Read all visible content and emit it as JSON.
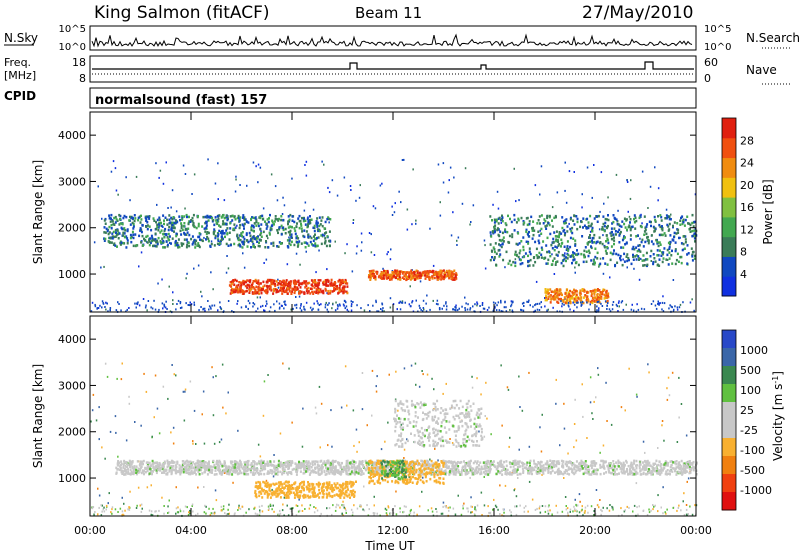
{
  "header": {
    "station": "King Salmon (fitACF)",
    "beam": "Beam 11",
    "date": "27/May/2010"
  },
  "top_strips": {
    "nsky_label": "N.Sky",
    "nsky_ticks": [
      "10^5",
      "10^0"
    ],
    "nsearch_label": "N.Search",
    "nsearch_ticks": [
      "10^5",
      "10^0"
    ],
    "freq_label_1": "Freq.",
    "freq_label_2": "[MHz]",
    "freq_ticks": [
      "18",
      "8"
    ],
    "nave_label": "Nave",
    "nave_ticks": [
      "60",
      "0"
    ],
    "cpid_label": "CPID",
    "cpid_value": "normalsound (fast) 157"
  },
  "axes": {
    "ylabel": "Slant Range [km]",
    "yticks": [
      "4000",
      "3000",
      "2000",
      "1000"
    ],
    "xticks": [
      "00:00",
      "04:00",
      "08:00",
      "12:00",
      "16:00",
      "20:00",
      "00:00"
    ],
    "xlabel": "Time UT"
  },
  "colors": {
    "power": [
      "#1030e0",
      "#1048c0",
      "#3a7c58",
      "#42a850",
      "#80c040",
      "#f0c010",
      "#f08c10",
      "#f05010",
      "#e02010"
    ],
    "velocity": [
      "#2848c8",
      "#3a66a8",
      "#3a8850",
      "#60c040",
      "#c8c8c8",
      "#c8c8c8",
      "#f8b030",
      "#f08010",
      "#f04010",
      "#e01010"
    ]
  },
  "chart_data": [
    {
      "type": "heatmap",
      "title": "Power",
      "colorbar_label": "Power [dB]",
      "colorbar_ticks": [
        "28",
        "24",
        "20",
        "16",
        "12",
        "8",
        "4"
      ],
      "x_range_hours": [
        0,
        24
      ],
      "y_range_km": [
        180,
        4500
      ],
      "features": [
        {
          "t_start_h": 0.5,
          "t_end_h": 9.5,
          "range_km": [
            1600,
            2300
          ],
          "power_db": 8
        },
        {
          "t_start_h": 5.5,
          "t_end_h": 10.2,
          "range_km": [
            600,
            900
          ],
          "power_db": 26
        },
        {
          "t_start_h": 11.0,
          "t_end_h": 14.5,
          "range_km": [
            900,
            1100
          ],
          "power_db": 24
        },
        {
          "t_start_h": 15.8,
          "t_end_h": 24,
          "range_km": [
            1200,
            2300
          ],
          "power_db": 8
        },
        {
          "t_start_h": 18.0,
          "t_end_h": 20.5,
          "range_km": [
            400,
            700
          ],
          "power_db": 22
        }
      ]
    },
    {
      "type": "heatmap",
      "title": "Velocity",
      "colorbar_label": "Velocity [m s^-1]",
      "colorbar_ticks": [
        "1000",
        "500",
        "100",
        "25",
        "-25",
        "-100",
        "-500",
        "-1000"
      ],
      "x_range_hours": [
        0,
        24
      ],
      "y_range_km": [
        180,
        4500
      ],
      "features": [
        {
          "t_start_h": 1.0,
          "t_end_h": 24,
          "range_km": [
            1100,
            1400
          ],
          "velocity_ms": 0
        },
        {
          "t_start_h": 6.5,
          "t_end_h": 10.5,
          "range_km": [
            600,
            950
          ],
          "velocity_ms": -200
        },
        {
          "t_start_h": 11.0,
          "t_end_h": 14.0,
          "range_km": [
            900,
            1400
          ],
          "velocity_ms": -300
        },
        {
          "t_start_h": 11.5,
          "t_end_h": 12.5,
          "range_km": [
            1000,
            1400
          ],
          "velocity_ms": 100
        },
        {
          "t_start_h": 12.0,
          "t_end_h": 15.5,
          "range_km": [
            1700,
            2700
          ],
          "velocity_ms": 0
        }
      ]
    }
  ]
}
